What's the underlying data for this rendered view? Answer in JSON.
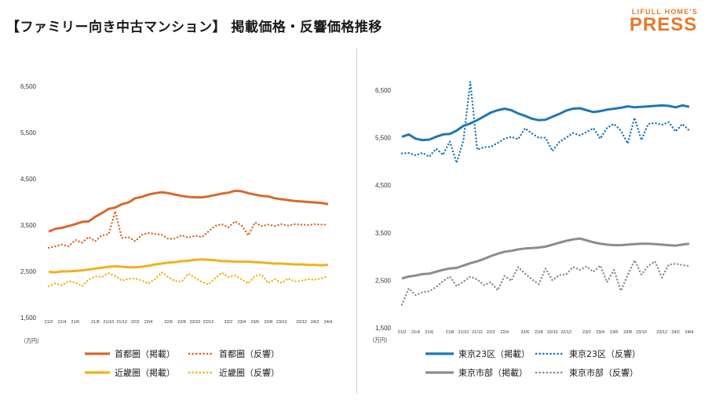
{
  "title": "【ファミリー向き中古マンション】 掲載価格・反響価格推移",
  "brand": {
    "top": "LIFULL HOME'S",
    "main": "PRESS",
    "color": "#e7792b"
  },
  "chart_data": [
    {
      "type": "line",
      "unit_label": "（万円）",
      "ylim": [
        1500,
        6500
      ],
      "yticks": [
        1500,
        2500,
        3500,
        4500,
        5500,
        6500
      ],
      "ytick_labels": [
        "1,500",
        "2,500",
        "3,500",
        "4,500",
        "5,500",
        "6,500"
      ],
      "x_tick_labels": [
        "21/2",
        "21/4",
        "21/6",
        "21/8",
        "21/10",
        "21/12",
        "22/2",
        "22/4",
        "22/6",
        "22/8",
        "22/10",
        "22/12",
        "23/2",
        "23/4",
        "23/6",
        "23/8",
        "23/10",
        "23/12",
        "24/2",
        "24/4"
      ],
      "series": [
        {
          "name": "首都圏（掲載）",
          "color": "#d9692a",
          "style": "solid",
          "values": [
            3360,
            3420,
            3440,
            3480,
            3520,
            3570,
            3580,
            3680,
            3760,
            3850,
            3880,
            3950,
            3990,
            4080,
            4110,
            4160,
            4190,
            4210,
            4190,
            4160,
            4130,
            4110,
            4100,
            4100,
            4120,
            4150,
            4180,
            4200,
            4240,
            4230,
            4190,
            4160,
            4130,
            4120,
            4080,
            4060,
            4040,
            4020,
            4010,
            4000,
            3990,
            3980,
            3950
          ]
        },
        {
          "name": "首都圏（反響）",
          "color": "#d9692a",
          "style": "dot",
          "values": [
            3010,
            3040,
            3080,
            3040,
            3180,
            3120,
            3240,
            3150,
            3280,
            3300,
            3800,
            3220,
            3240,
            3150,
            3290,
            3330,
            3310,
            3290,
            3200,
            3210,
            3280,
            3230,
            3270,
            3240,
            3360,
            3480,
            3520,
            3450,
            3580,
            3490,
            3280,
            3560,
            3480,
            3510,
            3480,
            3520,
            3490,
            3520,
            3510,
            3500,
            3520,
            3510,
            3510
          ]
        },
        {
          "name": "近畿圏（掲載）",
          "color": "#f2b11c",
          "style": "solid",
          "values": [
            2490,
            2480,
            2500,
            2500,
            2510,
            2520,
            2540,
            2560,
            2580,
            2600,
            2610,
            2600,
            2590,
            2590,
            2600,
            2620,
            2650,
            2670,
            2690,
            2700,
            2720,
            2730,
            2750,
            2760,
            2750,
            2740,
            2720,
            2720,
            2710,
            2710,
            2710,
            2700,
            2690,
            2680,
            2670,
            2670,
            2660,
            2650,
            2650,
            2640,
            2640,
            2630,
            2640
          ]
        },
        {
          "name": "近畿圏（反響）",
          "color": "#f2b11c",
          "style": "dot",
          "values": [
            2180,
            2240,
            2200,
            2290,
            2260,
            2180,
            2320,
            2390,
            2380,
            2460,
            2400,
            2300,
            2340,
            2350,
            2300,
            2240,
            2330,
            2480,
            2370,
            2290,
            2280,
            2450,
            2360,
            2270,
            2220,
            2350,
            2470,
            2380,
            2410,
            2330,
            2240,
            2400,
            2430,
            2250,
            2330,
            2250,
            2350,
            2280,
            2300,
            2330,
            2320,
            2350,
            2400
          ]
        }
      ],
      "legend": [
        "首都圏（掲載）",
        "首都圏（反響）",
        "近畿圏（掲載）",
        "近畿圏（反響）"
      ]
    },
    {
      "type": "line",
      "unit_label": "（万円）",
      "ylim": [
        1500,
        6500
      ],
      "yticks": [
        1500,
        2500,
        3500,
        4500,
        5500,
        6500
      ],
      "ytick_labels": [
        "1,500",
        "2,500",
        "3,500",
        "4,500",
        "5,500",
        "6,500"
      ],
      "x_tick_labels": [
        "21/2",
        "21/4",
        "21/6",
        "21/8",
        "21/10",
        "21/12",
        "22/2",
        "22/4",
        "22/6",
        "22/8",
        "22/10",
        "22/12",
        "23/2",
        "23/4",
        "23/6",
        "23/8",
        "23/10",
        "23/12",
        "24/2",
        "24/4"
      ],
      "series": [
        {
          "name": "東京23区（掲載）",
          "color": "#1f77b4",
          "style": "solid",
          "values": [
            5520,
            5570,
            5480,
            5450,
            5460,
            5520,
            5570,
            5580,
            5650,
            5750,
            5800,
            5870,
            5950,
            6030,
            6080,
            6110,
            6080,
            6010,
            5960,
            5900,
            5870,
            5880,
            5940,
            6000,
            6070,
            6110,
            6120,
            6080,
            6040,
            6060,
            6090,
            6110,
            6130,
            6160,
            6140,
            6150,
            6160,
            6170,
            6180,
            6170,
            6140,
            6180,
            6150
          ]
        },
        {
          "name": "東京23区（反響）",
          "color": "#1f77b4",
          "style": "dot",
          "values": [
            5170,
            5180,
            5130,
            5180,
            5100,
            5270,
            5140,
            5420,
            4970,
            5450,
            6680,
            5250,
            5300,
            5310,
            5390,
            5480,
            5520,
            5470,
            5700,
            5590,
            5500,
            5500,
            5220,
            5410,
            5500,
            5600,
            5550,
            5620,
            5700,
            5480,
            5710,
            5790,
            5650,
            5380,
            5920,
            5450,
            5790,
            5810,
            5770,
            5830,
            5630,
            5790,
            5650
          ]
        },
        {
          "name": "東京市部（掲載）",
          "color": "#8c8c8c",
          "style": "solid",
          "values": [
            2540,
            2580,
            2600,
            2630,
            2640,
            2680,
            2720,
            2750,
            2760,
            2810,
            2860,
            2900,
            2950,
            3010,
            3060,
            3100,
            3120,
            3150,
            3170,
            3180,
            3190,
            3210,
            3250,
            3290,
            3330,
            3360,
            3380,
            3340,
            3300,
            3270,
            3250,
            3240,
            3240,
            3250,
            3260,
            3270,
            3270,
            3260,
            3250,
            3240,
            3230,
            3250,
            3270
          ]
        },
        {
          "name": "東京市部（反響）",
          "color": "#8c8c8c",
          "style": "dot",
          "values": [
            1990,
            2330,
            2190,
            2250,
            2270,
            2360,
            2480,
            2580,
            2380,
            2470,
            2580,
            2520,
            2400,
            2460,
            2290,
            2590,
            2490,
            2780,
            2640,
            2520,
            2420,
            2750,
            2500,
            2610,
            2620,
            2780,
            2720,
            2790,
            2680,
            2810,
            2460,
            2720,
            2280,
            2610,
            2920,
            2620,
            2800,
            2900,
            2560,
            2830,
            2850,
            2820,
            2800
          ]
        }
      ],
      "legend": [
        "東京23区（掲載）",
        "東京23区（反響）",
        "東京市部（掲載）",
        "東京市部（反響）"
      ]
    }
  ]
}
